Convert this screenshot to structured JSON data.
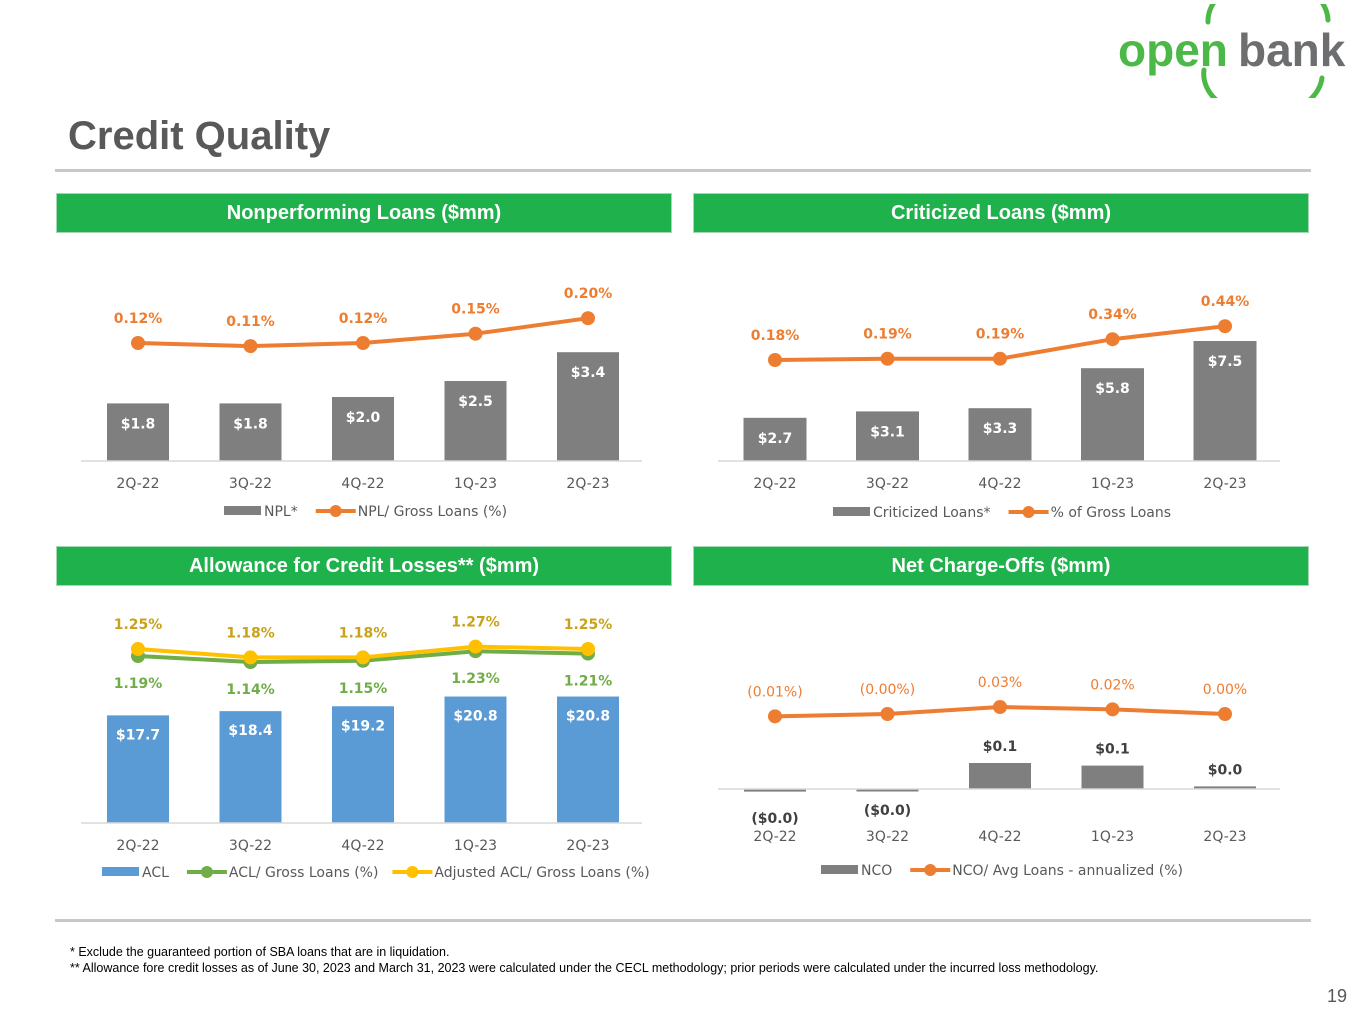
{
  "logo": {
    "part1": "open",
    "part2": "bank"
  },
  "page_title": "Credit Quality",
  "panels": [
    {
      "header": "Nonperforming Loans ($mm)"
    },
    {
      "header": "Criticized Loans ($mm)"
    },
    {
      "header": "Allowance for Credit Losses** ($mm)"
    },
    {
      "header": "Net Charge-Offs ($mm)"
    }
  ],
  "colors": {
    "header_green": "#1fb14b",
    "bar_gray": "#7f7f7f",
    "bar_blue": "#5b9bd5",
    "line_orange": "#ed7d31",
    "line_green": "#70ad47",
    "line_yellow": "#ffc000",
    "label_gold": "#c9a21a",
    "label_white": "#ffffff",
    "label_dark": "#404040"
  },
  "chart_data": [
    {
      "type": "bar",
      "title": "Nonperforming Loans ($mm)",
      "categories": [
        "2Q-22",
        "3Q-22",
        "4Q-22",
        "1Q-23",
        "2Q-23"
      ],
      "series": [
        {
          "name": "NPL*",
          "kind": "bar",
          "values": [
            1.8,
            1.8,
            2.0,
            2.5,
            3.4
          ],
          "labels": [
            "$1.8",
            "$1.8",
            "$2.0",
            "$2.5",
            "$3.4"
          ]
        },
        {
          "name": "NPL/ Gross Loans (%)",
          "kind": "line",
          "values": [
            0.12,
            0.11,
            0.12,
            0.15,
            0.2
          ],
          "labels": [
            "0.12%",
            "0.11%",
            "0.12%",
            "0.15%",
            "0.20%"
          ]
        }
      ]
    },
    {
      "type": "bar",
      "title": "Criticized Loans ($mm)",
      "categories": [
        "2Q-22",
        "3Q-22",
        "4Q-22",
        "1Q-23",
        "2Q-23"
      ],
      "series": [
        {
          "name": "Criticized Loans*",
          "kind": "bar",
          "values": [
            2.7,
            3.1,
            3.3,
            5.8,
            7.5
          ],
          "labels": [
            "$2.7",
            "$3.1",
            "$3.3",
            "$5.8",
            "$7.5"
          ]
        },
        {
          "name": "% of Gross Loans",
          "kind": "line",
          "values": [
            0.18,
            0.19,
            0.19,
            0.34,
            0.44
          ],
          "labels": [
            "0.18%",
            "0.19%",
            "0.19%",
            "0.34%",
            "0.44%"
          ]
        }
      ]
    },
    {
      "type": "bar",
      "title": "Allowance for Credit Losses** ($mm)",
      "categories": [
        "2Q-22",
        "3Q-22",
        "4Q-22",
        "1Q-23",
        "2Q-23"
      ],
      "series": [
        {
          "name": "ACL",
          "kind": "bar",
          "values": [
            17.7,
            18.4,
            19.2,
            20.8,
            20.8
          ],
          "labels": [
            "$17.7",
            "$18.4",
            "$19.2",
            "$20.8",
            "$20.8"
          ]
        },
        {
          "name": "ACL/ Gross Loans (%)",
          "kind": "line",
          "values": [
            1.19,
            1.14,
            1.15,
            1.23,
            1.21
          ],
          "labels": [
            "1.19%",
            "1.14%",
            "1.15%",
            "1.23%",
            "1.21%"
          ]
        },
        {
          "name": "Adjusted ACL/ Gross Loans (%)",
          "kind": "line",
          "values": [
            1.25,
            1.18,
            1.18,
            1.27,
            1.25
          ],
          "labels": [
            "1.25%",
            "1.18%",
            "1.18%",
            "1.27%",
            "1.25%"
          ]
        }
      ]
    },
    {
      "type": "bar",
      "title": "Net Charge-Offs ($mm)",
      "categories": [
        "2Q-22",
        "3Q-22",
        "4Q-22",
        "1Q-23",
        "2Q-23"
      ],
      "series": [
        {
          "name": "NCO",
          "kind": "bar",
          "values": [
            -0.01,
            -0.003,
            0.1,
            0.09,
            0.01
          ],
          "labels": [
            "($0.0)",
            "($0.0)",
            "$0.1",
            "$0.1",
            "$0.0"
          ]
        },
        {
          "name": "NCO/ Avg Loans - annualized (%)",
          "kind": "line",
          "values": [
            -0.01,
            -0.0,
            0.03,
            0.02,
            0.0
          ],
          "labels": [
            "(0.01%)",
            "(0.00%)",
            "0.03%",
            "0.02%",
            "0.00%"
          ]
        }
      ]
    }
  ],
  "footnotes": [
    "* Exclude the guaranteed portion of SBA loans that are in liquidation.",
    "** Allowance fore credit losses as of June 30, 2023 and March 31, 2023 were calculated under the CECL methodology; prior periods were calculated under the incurred loss methodology."
  ],
  "page_number": "19"
}
